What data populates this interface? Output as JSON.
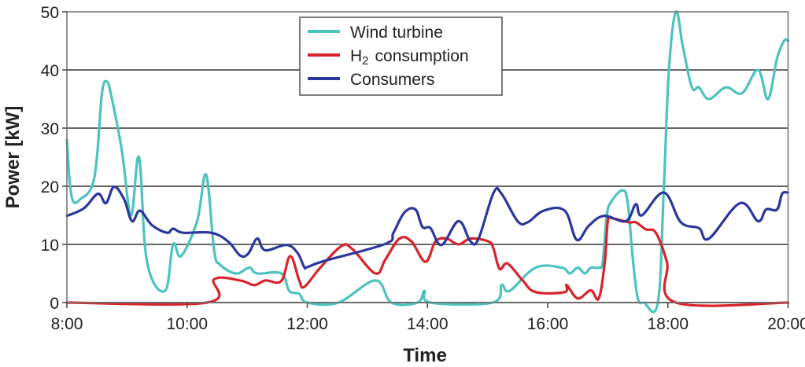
{
  "chart_data": {
    "type": "line",
    "title": "",
    "xlabel": "Time",
    "ylabel": "Power [kW]",
    "xlim": [
      "8:00",
      "20:00"
    ],
    "ylim": [
      0,
      50
    ],
    "x_ticks": [
      "8:00",
      "10:00",
      "12:00",
      "14:00",
      "16:00",
      "18:00",
      "20:00"
    ],
    "y_ticks": [
      0,
      10,
      20,
      30,
      40,
      50
    ],
    "grid": "horizontal",
    "legend_position": "top-center",
    "series": [
      {
        "name": "Wind turbine",
        "legend_label": "Wind turbine",
        "color": "#4cc3bd",
        "points": [
          [
            "8:00",
            28
          ],
          [
            "8:05",
            18
          ],
          [
            "8:15",
            18
          ],
          [
            "8:25",
            20
          ],
          [
            "8:30",
            25
          ],
          [
            "8:35",
            36
          ],
          [
            "8:40",
            38
          ],
          [
            "8:45",
            35
          ],
          [
            "8:55",
            26
          ],
          [
            "9:04",
            15
          ],
          [
            "9:12",
            25
          ],
          [
            "9:20",
            7
          ],
          [
            "9:38",
            2
          ],
          [
            "9:46",
            10
          ],
          [
            "9:54",
            8
          ],
          [
            "10:10",
            14
          ],
          [
            "10:19",
            22
          ],
          [
            "10:27",
            9
          ],
          [
            "10:33",
            6.5
          ],
          [
            "10:49",
            5
          ],
          [
            "11:02",
            6
          ],
          [
            "11:10",
            5
          ],
          [
            "11:34",
            5
          ],
          [
            "11:42",
            2
          ],
          [
            "11:52",
            1.5
          ],
          [
            "12:00",
            0
          ],
          [
            "12:31",
            0
          ],
          [
            "13:08",
            3.8
          ],
          [
            "13:24",
            0
          ],
          [
            "13:50",
            0
          ],
          [
            "13:57",
            2
          ],
          [
            "14:03",
            0
          ],
          [
            "15:05",
            0
          ],
          [
            "15:14",
            3
          ],
          [
            "15:22",
            2
          ],
          [
            "15:48",
            6
          ],
          [
            "16:14",
            6
          ],
          [
            "16:22",
            5
          ],
          [
            "16:30",
            6
          ],
          [
            "16:37",
            5
          ],
          [
            "16:43",
            6
          ],
          [
            "16:51",
            6
          ],
          [
            "16:55",
            7
          ],
          [
            "16:59",
            15
          ],
          [
            "17:04",
            17.5
          ],
          [
            "17:15",
            19.3
          ],
          [
            "17:20",
            17
          ],
          [
            "17:25",
            7.5
          ],
          [
            "17:30",
            0.7
          ],
          [
            "17:36",
            0
          ],
          [
            "17:50",
            0
          ],
          [
            "17:56",
            20
          ],
          [
            "18:01",
            40
          ],
          [
            "18:08",
            50
          ],
          [
            "18:15",
            44
          ],
          [
            "18:24",
            37
          ],
          [
            "18:31",
            37
          ],
          [
            "18:41",
            35
          ],
          [
            "18:58",
            37
          ],
          [
            "19:14",
            36
          ],
          [
            "19:30",
            40
          ],
          [
            "19:40",
            35
          ],
          [
            "19:49",
            42
          ],
          [
            "19:56",
            45
          ],
          [
            "20:00",
            45
          ]
        ]
      },
      {
        "name": "H2 consumption",
        "legend_label": "H",
        "legend_subscript": "2",
        "legend_suffix": "consumption",
        "color": "#d8232a",
        "points": [
          [
            "8:00",
            0
          ],
          [
            "10:20",
            0
          ],
          [
            "10:27",
            4
          ],
          [
            "10:53",
            3.8
          ],
          [
            "11:07",
            3
          ],
          [
            "11:18",
            3.8
          ],
          [
            "11:34",
            3.7
          ],
          [
            "11:43",
            8
          ],
          [
            "11:52",
            3.8
          ],
          [
            "11:57",
            2.7
          ],
          [
            "12:13",
            6
          ],
          [
            "12:34",
            9.7
          ],
          [
            "12:45",
            9.2
          ],
          [
            "13:08",
            5
          ],
          [
            "13:18",
            7.4
          ],
          [
            "13:32",
            11
          ],
          [
            "13:44",
            10.5
          ],
          [
            "13:58",
            7
          ],
          [
            "14:08",
            10.5
          ],
          [
            "14:19",
            11
          ],
          [
            "14:31",
            10
          ],
          [
            "14:43",
            11
          ],
          [
            "15:01",
            10.5
          ],
          [
            "15:06",
            9.2
          ],
          [
            "15:12",
            5.8
          ],
          [
            "15:20",
            6.7
          ],
          [
            "15:35",
            3.8
          ],
          [
            "15:48",
            1.8
          ],
          [
            "16:17",
            1.8
          ],
          [
            "16:19",
            3
          ],
          [
            "16:30",
            0.7
          ],
          [
            "16:43",
            2.1
          ],
          [
            "16:51",
            0.7
          ],
          [
            "16:57",
            7
          ],
          [
            "17:00",
            14
          ],
          [
            "17:04",
            14.5
          ],
          [
            "17:21",
            13.8
          ],
          [
            "17:28",
            13.8
          ],
          [
            "17:38",
            12.6
          ],
          [
            "17:48",
            12
          ],
          [
            "17:59",
            7
          ],
          [
            "18:08",
            0
          ],
          [
            "20:00",
            0
          ]
        ]
      },
      {
        "name": "Consumers",
        "legend_label": "Consumers",
        "color": "#2b379c",
        "points": [
          [
            "8:00",
            14.9
          ],
          [
            "8:17",
            16.2
          ],
          [
            "8:31",
            18.7
          ],
          [
            "8:39",
            17.1
          ],
          [
            "8:47",
            19.9
          ],
          [
            "8:57",
            17.8
          ],
          [
            "9:05",
            14
          ],
          [
            "9:13",
            15.8
          ],
          [
            "9:25",
            13.3
          ],
          [
            "9:40",
            12
          ],
          [
            "9:46",
            12.7
          ],
          [
            "9:56",
            12
          ],
          [
            "10:24",
            12
          ],
          [
            "10:41",
            10.5
          ],
          [
            "10:53",
            8.1
          ],
          [
            "11:01",
            8.4
          ],
          [
            "11:10",
            11
          ],
          [
            "11:18",
            9
          ],
          [
            "11:39",
            9.9
          ],
          [
            "11:50",
            8.6
          ],
          [
            "11:57",
            6.1
          ],
          [
            "12:00",
            6.1
          ],
          [
            "12:18",
            7.2
          ],
          [
            "13:18",
            10.1
          ],
          [
            "13:26",
            12
          ],
          [
            "13:37",
            15.5
          ],
          [
            "13:48",
            16
          ],
          [
            "13:55",
            13
          ],
          [
            "14:03",
            12.8
          ],
          [
            "14:14",
            9.9
          ],
          [
            "14:31",
            14
          ],
          [
            "14:43",
            10.5
          ],
          [
            "14:51",
            11
          ],
          [
            "15:06",
            18.9
          ],
          [
            "15:14",
            18.7
          ],
          [
            "15:30",
            14
          ],
          [
            "15:40",
            13.8
          ],
          [
            "15:56",
            15.8
          ],
          [
            "16:17",
            15.8
          ],
          [
            "16:29",
            10.8
          ],
          [
            "16:41",
            13.2
          ],
          [
            "16:56",
            14.9
          ],
          [
            "17:18",
            14
          ],
          [
            "17:28",
            16.9
          ],
          [
            "17:34",
            15
          ],
          [
            "17:56",
            18.9
          ],
          [
            "18:13",
            13.8
          ],
          [
            "18:31",
            12.8
          ],
          [
            "18:41",
            11
          ],
          [
            "19:12",
            17.1
          ],
          [
            "19:30",
            14
          ],
          [
            "19:38",
            16
          ],
          [
            "19:49",
            16
          ],
          [
            "19:54",
            18.7
          ],
          [
            "20:00",
            18.9
          ]
        ]
      }
    ]
  }
}
